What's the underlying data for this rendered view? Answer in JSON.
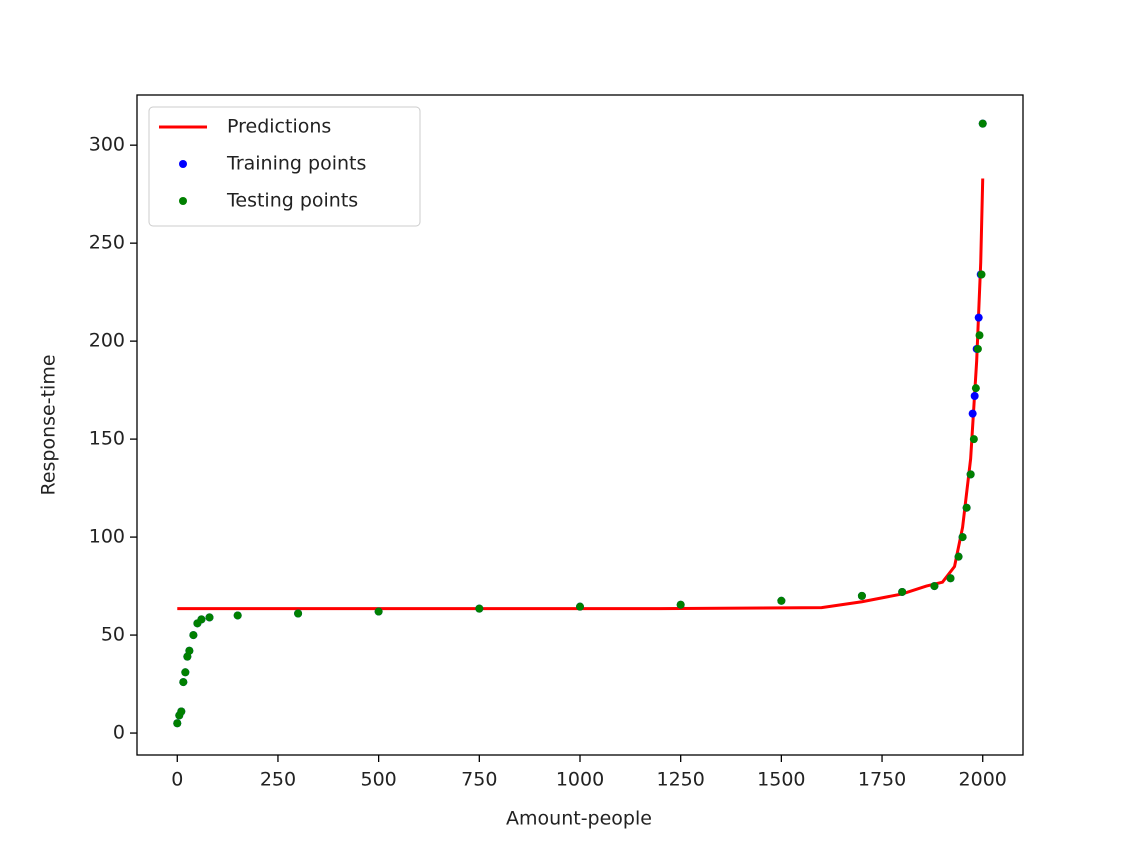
{
  "chart_data": {
    "type": "scatter",
    "x_label": "Amount-people",
    "y_label": "Response-time",
    "xlim": [
      -100,
      2100
    ],
    "ylim": [
      -11.2,
      325.6
    ],
    "xticks": [
      0,
      250,
      500,
      750,
      1000,
      1250,
      1500,
      1750,
      2000
    ],
    "yticks": [
      0,
      50,
      100,
      150,
      200,
      250,
      300
    ],
    "grid": false,
    "legend": "upper left",
    "series": [
      {
        "name": "Predictions",
        "type": "line",
        "color": "#ff0000",
        "x": [
          0,
          400,
          800,
          1200,
          1600,
          1700,
          1800,
          1860,
          1900,
          1930,
          1950,
          1970,
          1985,
          1995,
          2000
        ],
        "values": [
          63.5,
          63.5,
          63.5,
          63.5,
          64,
          67,
          71,
          75,
          77,
          85,
          105,
          140,
          190,
          240,
          283
        ]
      },
      {
        "name": "Training points",
        "type": "scatter",
        "color": "#0000ff",
        "x": [
          0,
          5,
          10,
          15,
          20,
          25,
          30,
          40,
          50,
          60,
          80,
          150,
          300,
          500,
          750,
          1000,
          1250,
          1500,
          1700,
          1800,
          1880,
          1920,
          1940,
          1950,
          1960,
          1970,
          1975,
          1980,
          1985,
          1990,
          1995,
          2000
        ],
        "values": [
          5,
          9,
          11,
          26,
          31,
          39,
          42,
          50,
          56,
          58,
          59,
          60,
          61,
          62,
          63.5,
          64.5,
          65.5,
          67.5,
          70,
          72,
          75,
          79,
          90,
          100,
          115,
          132,
          163,
          172,
          196,
          212,
          234,
          311
        ]
      },
      {
        "name": "Testing points",
        "type": "scatter",
        "color": "#008000",
        "x": [
          0,
          5,
          10,
          15,
          20,
          25,
          30,
          40,
          50,
          60,
          80,
          150,
          300,
          500,
          750,
          1000,
          1250,
          1500,
          1700,
          1800,
          1880,
          1920,
          1940,
          1950,
          1960,
          1970,
          1978,
          1983,
          1988,
          1992,
          1997,
          2000
        ],
        "values": [
          5,
          9,
          11,
          26,
          31,
          39,
          42,
          50,
          56,
          58,
          59,
          60,
          61,
          62,
          63.5,
          64.5,
          65.5,
          67.5,
          70,
          72,
          75,
          79,
          90,
          100,
          115,
          132,
          150,
          176,
          196,
          203,
          234,
          311
        ]
      }
    ]
  }
}
